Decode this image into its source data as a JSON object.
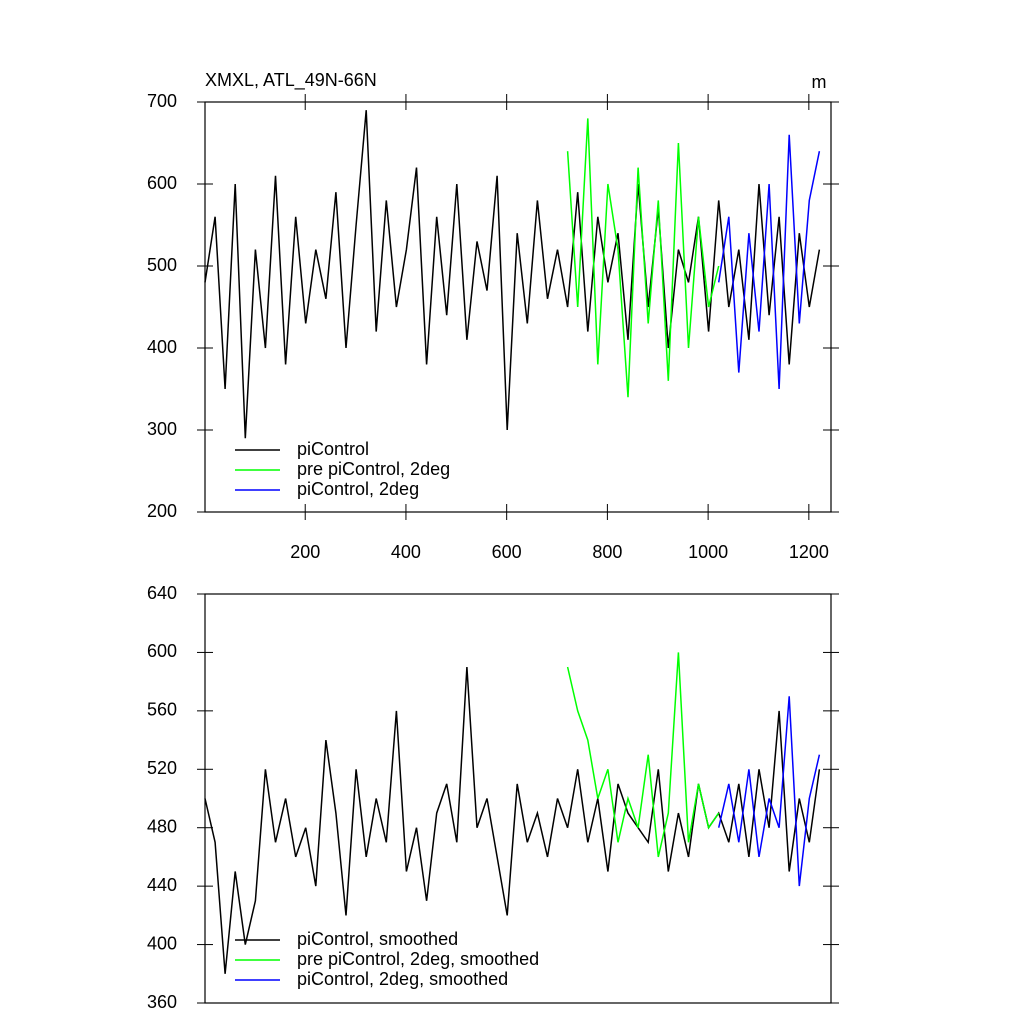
{
  "chart_data": [
    {
      "type": "line",
      "title": "XMXL, ATL_49N-66N",
      "units": "m",
      "x": [
        1,
        21,
        41,
        61,
        81,
        101,
        121,
        141,
        161,
        181,
        201,
        221,
        241,
        261,
        281,
        301,
        321,
        341,
        361,
        381,
        401,
        421,
        441,
        461,
        481,
        501,
        521,
        541,
        561,
        581,
        601,
        621,
        641,
        661,
        681,
        701,
        721,
        741,
        761,
        781,
        801,
        821,
        841,
        861,
        881,
        901,
        921,
        941,
        961,
        981,
        1001,
        1021,
        1041,
        1061,
        1081,
        1101,
        1121,
        1141,
        1161,
        1181,
        1201,
        1221
      ],
      "series": [
        {
          "name": "piControl",
          "color": "#000000",
          "values": [
            480,
            560,
            350,
            600,
            290,
            520,
            400,
            610,
            380,
            560,
            430,
            520,
            460,
            590,
            400,
            550,
            690,
            420,
            580,
            450,
            520,
            620,
            380,
            560,
            440,
            600,
            410,
            530,
            470,
            610,
            300,
            540,
            430,
            580,
            460,
            520,
            450,
            590,
            420,
            560,
            480,
            540,
            410,
            600,
            450,
            570,
            400,
            520,
            480,
            560,
            420,
            580,
            450,
            520,
            410,
            600,
            440,
            560,
            380,
            540,
            450,
            520
          ]
        },
        {
          "name": "pre piControl, 2deg",
          "color": "#00ff00",
          "values": [
            null,
            null,
            null,
            null,
            null,
            null,
            null,
            null,
            null,
            null,
            null,
            null,
            null,
            null,
            null,
            null,
            null,
            null,
            null,
            null,
            null,
            null,
            null,
            null,
            null,
            null,
            null,
            null,
            null,
            null,
            null,
            null,
            null,
            null,
            null,
            null,
            640,
            450,
            680,
            380,
            600,
            520,
            340,
            620,
            430,
            580,
            360,
            650,
            400,
            560,
            450,
            500,
            null,
            null,
            null,
            null,
            null,
            null,
            null,
            null,
            null,
            null
          ]
        },
        {
          "name": "piControl, 2deg",
          "color": "#0000ff",
          "values": [
            null,
            null,
            null,
            null,
            null,
            null,
            null,
            null,
            null,
            null,
            null,
            null,
            null,
            null,
            null,
            null,
            null,
            null,
            null,
            null,
            null,
            null,
            null,
            null,
            null,
            null,
            null,
            null,
            null,
            null,
            null,
            null,
            null,
            null,
            null,
            null,
            null,
            null,
            null,
            null,
            null,
            null,
            null,
            null,
            null,
            null,
            null,
            null,
            null,
            null,
            null,
            480,
            560,
            370,
            540,
            420,
            600,
            350,
            660,
            430,
            580,
            640
          ]
        }
      ],
      "xlim": [
        1,
        1244
      ],
      "xticks": [
        200,
        400,
        600,
        800,
        1000,
        1200
      ],
      "ylim": [
        200,
        700
      ],
      "yticks": [
        200,
        300,
        400,
        500,
        600,
        700
      ]
    },
    {
      "type": "line",
      "x": [
        1,
        21,
        41,
        61,
        81,
        101,
        121,
        141,
        161,
        181,
        201,
        221,
        241,
        261,
        281,
        301,
        321,
        341,
        361,
        381,
        401,
        421,
        441,
        461,
        481,
        501,
        521,
        541,
        561,
        581,
        601,
        621,
        641,
        661,
        681,
        701,
        721,
        741,
        761,
        781,
        801,
        821,
        841,
        861,
        881,
        901,
        921,
        941,
        961,
        981,
        1001,
        1021,
        1041,
        1061,
        1081,
        1101,
        1121,
        1141,
        1161,
        1181,
        1201,
        1221
      ],
      "series": [
        {
          "name": "piControl, smoothed",
          "color": "#000000",
          "values": [
            500,
            470,
            380,
            450,
            400,
            430,
            520,
            470,
            500,
            460,
            480,
            440,
            540,
            490,
            420,
            520,
            460,
            500,
            470,
            560,
            450,
            480,
            430,
            490,
            510,
            470,
            590,
            480,
            500,
            460,
            420,
            510,
            470,
            490,
            460,
            500,
            480,
            520,
            470,
            500,
            450,
            510,
            490,
            480,
            470,
            520,
            450,
            490,
            460,
            510,
            480,
            490,
            470,
            510,
            460,
            520,
            480,
            560,
            450,
            500,
            470,
            520
          ]
        },
        {
          "name": "pre piControl, 2deg, smoothed",
          "color": "#00ff00",
          "values": [
            null,
            null,
            null,
            null,
            null,
            null,
            null,
            null,
            null,
            null,
            null,
            null,
            null,
            null,
            null,
            null,
            null,
            null,
            null,
            null,
            null,
            null,
            null,
            null,
            null,
            null,
            null,
            null,
            null,
            null,
            null,
            null,
            null,
            null,
            null,
            null,
            590,
            560,
            540,
            500,
            520,
            470,
            500,
            480,
            530,
            460,
            490,
            600,
            470,
            510,
            480,
            490,
            null,
            null,
            null,
            null,
            null,
            null,
            null,
            null,
            null,
            null
          ]
        },
        {
          "name": "piControl, 2deg, smoothed",
          "color": "#0000ff",
          "values": [
            null,
            null,
            null,
            null,
            null,
            null,
            null,
            null,
            null,
            null,
            null,
            null,
            null,
            null,
            null,
            null,
            null,
            null,
            null,
            null,
            null,
            null,
            null,
            null,
            null,
            null,
            null,
            null,
            null,
            null,
            null,
            null,
            null,
            null,
            null,
            null,
            null,
            null,
            null,
            null,
            null,
            null,
            null,
            null,
            null,
            null,
            null,
            null,
            null,
            null,
            null,
            480,
            510,
            470,
            520,
            460,
            500,
            480,
            570,
            440,
            500,
            530
          ]
        }
      ],
      "xlim": [
        1,
        1244
      ],
      "ylim": [
        360,
        640
      ],
      "yticks": [
        360,
        400,
        440,
        480,
        520,
        560,
        600,
        640
      ]
    }
  ]
}
